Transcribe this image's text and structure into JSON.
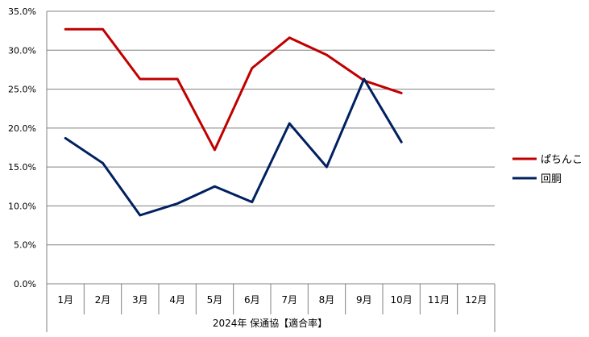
{
  "chart_data": {
    "type": "line",
    "title": "",
    "xlabel": "2024年 保通協【適合率】",
    "ylabel": "",
    "ylim": [
      0,
      35
    ],
    "yticks": [
      "0.0%",
      "5.0%",
      "10.0%",
      "15.0%",
      "20.0%",
      "25.0%",
      "30.0%",
      "35.0%"
    ],
    "categories": [
      "1月",
      "2月",
      "3月",
      "4月",
      "5月",
      "6月",
      "7月",
      "8月",
      "9月",
      "10月",
      "11月",
      "12月"
    ],
    "grid": true,
    "legend_position": "right",
    "series": [
      {
        "name": "ぱちんこ",
        "color": "#C00000",
        "values": [
          32.7,
          32.7,
          26.3,
          26.3,
          17.2,
          27.7,
          31.6,
          29.4,
          26.1,
          24.5,
          null,
          null
        ]
      },
      {
        "name": "回胴",
        "color": "#002060",
        "values": [
          18.7,
          15.5,
          8.8,
          10.3,
          12.5,
          10.5,
          20.6,
          15.0,
          26.3,
          18.2,
          null,
          null
        ]
      }
    ]
  }
}
